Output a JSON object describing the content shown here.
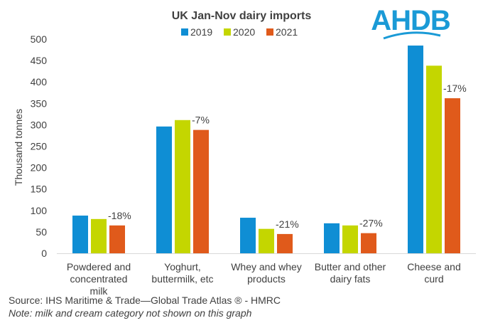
{
  "brand": {
    "logo_text": "AHDB",
    "logo_color": "#1a9ad6"
  },
  "chart_data": {
    "type": "bar",
    "title": "UK Jan-Nov dairy imports",
    "ylabel": "Thousand tonnes",
    "xlabel": "",
    "ylim": [
      0,
      500
    ],
    "yticks": [
      0,
      50,
      100,
      150,
      200,
      250,
      300,
      350,
      400,
      450,
      500
    ],
    "grid": false,
    "legend_position": "top",
    "categories": [
      [
        "Powdered and",
        "concentrated",
        "milk"
      ],
      [
        "Yoghurt,",
        "buttermilk, etc"
      ],
      [
        "Whey and whey",
        "products"
      ],
      [
        "Butter and other",
        "dairy fats"
      ],
      [
        "Cheese and",
        "curd"
      ]
    ],
    "series": [
      {
        "name": "2019",
        "color": "#0f8ed4",
        "values": [
          88,
          296,
          83,
          70,
          485
        ]
      },
      {
        "name": "2020",
        "color": "#c4d600",
        "values": [
          80,
          311,
          57,
          65,
          438
        ]
      },
      {
        "name": "2021",
        "color": "#e05a1b",
        "values": [
          65,
          288,
          45,
          47,
          362
        ]
      }
    ],
    "annotations": [
      "-18%",
      "-7%",
      "-21%",
      "-27%",
      "-17%"
    ]
  },
  "footer": {
    "source": "Source: IHS Maritime & Trade—Global Trade Atlas ®  - HMRC",
    "note": "Note: milk and cream category not shown  on this graph"
  }
}
